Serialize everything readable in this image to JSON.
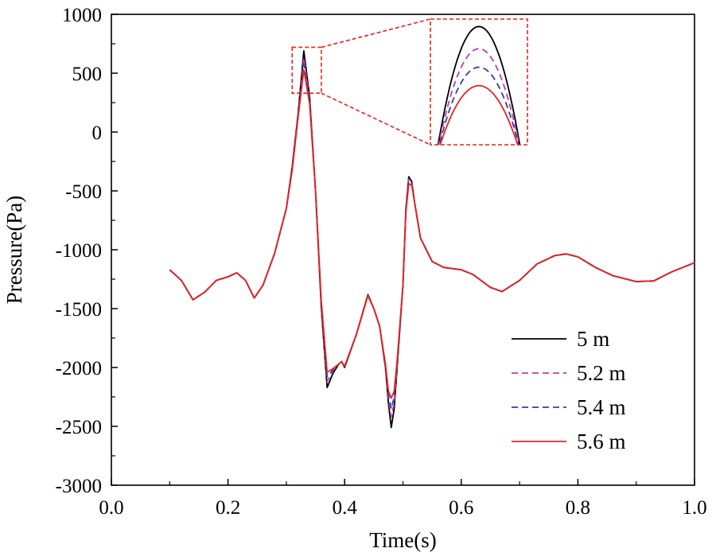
{
  "chart_data": {
    "type": "line",
    "title": "",
    "xlabel": "Time(s)",
    "ylabel": "Pressure(Pa)",
    "xlim": [
      0.0,
      1.0
    ],
    "ylim": [
      -3000,
      1000
    ],
    "x_ticks": [
      0.0,
      0.2,
      0.4,
      0.6,
      0.8,
      1.0
    ],
    "x_tick_labels": [
      "0.0",
      "0.2",
      "0.4",
      "0.6",
      "0.8",
      "1.0"
    ],
    "y_ticks": [
      1000,
      500,
      0,
      -500,
      -1000,
      -1500,
      -2000,
      -2500,
      -3000
    ],
    "y_tick_labels": [
      "1000",
      "500",
      "0",
      "-500",
      "-1000",
      "-1500",
      "-2000",
      "-2500",
      "-3000"
    ],
    "legend_position": "bottom-right",
    "grid": false,
    "inset": {
      "type": "zoom",
      "position": "top-center",
      "source_x_range": [
        0.31,
        0.36
      ],
      "source_y_range": [
        330,
        720
      ],
      "inset_x_range": [
        0.316,
        0.344
      ],
      "inset_y_range": [
        370,
        710
      ]
    },
    "series": [
      {
        "name": "5 m",
        "color": "#000000",
        "dash": "solid",
        "x": [
          0.1,
          0.12,
          0.14,
          0.16,
          0.18,
          0.2,
          0.215,
          0.23,
          0.245,
          0.26,
          0.28,
          0.3,
          0.31,
          0.32,
          0.33,
          0.34,
          0.35,
          0.36,
          0.37,
          0.38,
          0.39,
          0.395,
          0.4,
          0.42,
          0.44,
          0.45,
          0.46,
          0.47,
          0.475,
          0.48,
          0.485,
          0.49,
          0.5,
          0.505,
          0.51,
          0.515,
          0.52,
          0.53,
          0.55,
          0.57,
          0.6,
          0.62,
          0.65,
          0.67,
          0.7,
          0.73,
          0.76,
          0.78,
          0.8,
          0.83,
          0.86,
          0.9,
          0.93,
          0.96,
          1.0
        ],
        "y": [
          -1170,
          -1260,
          -1425,
          -1360,
          -1260,
          -1230,
          -1195,
          -1260,
          -1410,
          -1300,
          -1030,
          -650,
          -300,
          150,
          690,
          300,
          -500,
          -1500,
          -2170,
          -2050,
          -1970,
          -1950,
          -2000,
          -1720,
          -1380,
          -1500,
          -1650,
          -2000,
          -2300,
          -2510,
          -2350,
          -2000,
          -1300,
          -650,
          -380,
          -420,
          -600,
          -900,
          -1100,
          -1150,
          -1170,
          -1210,
          -1320,
          -1355,
          -1260,
          -1120,
          -1050,
          -1035,
          -1060,
          -1150,
          -1220,
          -1270,
          -1265,
          -1190,
          -1110
        ]
      },
      {
        "name": "5.2 m",
        "color": "#c03ca8",
        "dash": "dashed",
        "x": [
          0.1,
          0.12,
          0.14,
          0.16,
          0.18,
          0.2,
          0.215,
          0.23,
          0.245,
          0.26,
          0.28,
          0.3,
          0.31,
          0.32,
          0.33,
          0.34,
          0.35,
          0.36,
          0.37,
          0.38,
          0.39,
          0.395,
          0.4,
          0.42,
          0.44,
          0.45,
          0.46,
          0.47,
          0.475,
          0.48,
          0.485,
          0.49,
          0.5,
          0.505,
          0.51,
          0.515,
          0.52,
          0.53,
          0.55,
          0.57,
          0.6,
          0.62,
          0.65,
          0.67,
          0.7,
          0.73,
          0.76,
          0.78,
          0.8,
          0.83,
          0.86,
          0.9,
          0.93,
          0.96,
          1.0
        ],
        "y": [
          -1170,
          -1260,
          -1425,
          -1360,
          -1260,
          -1230,
          -1195,
          -1260,
          -1410,
          -1300,
          -1030,
          -650,
          -310,
          140,
          630,
          280,
          -500,
          -1480,
          -2120,
          -2030,
          -1970,
          -1950,
          -1990,
          -1720,
          -1385,
          -1500,
          -1650,
          -1990,
          -2260,
          -2420,
          -2300,
          -1980,
          -1300,
          -660,
          -400,
          -430,
          -600,
          -900,
          -1100,
          -1150,
          -1170,
          -1210,
          -1320,
          -1355,
          -1260,
          -1120,
          -1050,
          -1035,
          -1060,
          -1150,
          -1220,
          -1270,
          -1265,
          -1190,
          -1110
        ]
      },
      {
        "name": "5.4 m",
        "color": "#2f3fa6",
        "dash": "dashed",
        "x": [
          0.1,
          0.12,
          0.14,
          0.16,
          0.18,
          0.2,
          0.215,
          0.23,
          0.245,
          0.26,
          0.28,
          0.3,
          0.31,
          0.32,
          0.33,
          0.34,
          0.35,
          0.36,
          0.37,
          0.38,
          0.39,
          0.395,
          0.4,
          0.42,
          0.44,
          0.45,
          0.46,
          0.47,
          0.475,
          0.48,
          0.485,
          0.49,
          0.5,
          0.505,
          0.51,
          0.515,
          0.52,
          0.53,
          0.55,
          0.57,
          0.6,
          0.62,
          0.65,
          0.67,
          0.7,
          0.73,
          0.76,
          0.78,
          0.8,
          0.83,
          0.86,
          0.9,
          0.93,
          0.96,
          1.0
        ],
        "y": [
          -1170,
          -1260,
          -1425,
          -1360,
          -1260,
          -1230,
          -1195,
          -1260,
          -1410,
          -1300,
          -1030,
          -650,
          -320,
          130,
          580,
          260,
          -500,
          -1460,
          -2080,
          -2020,
          -1970,
          -1950,
          -1990,
          -1720,
          -1385,
          -1500,
          -1650,
          -1980,
          -2230,
          -2350,
          -2250,
          -1960,
          -1300,
          -670,
          -420,
          -440,
          -600,
          -900,
          -1100,
          -1150,
          -1170,
          -1210,
          -1320,
          -1355,
          -1260,
          -1120,
          -1050,
          -1035,
          -1060,
          -1150,
          -1220,
          -1270,
          -1265,
          -1190,
          -1110
        ]
      },
      {
        "name": "5.6 m",
        "color": "#e8231f",
        "dash": "solid",
        "x": [
          0.1,
          0.12,
          0.14,
          0.16,
          0.18,
          0.2,
          0.215,
          0.23,
          0.245,
          0.26,
          0.28,
          0.3,
          0.31,
          0.32,
          0.33,
          0.34,
          0.35,
          0.36,
          0.37,
          0.38,
          0.39,
          0.395,
          0.4,
          0.42,
          0.44,
          0.45,
          0.46,
          0.47,
          0.475,
          0.48,
          0.485,
          0.49,
          0.5,
          0.505,
          0.51,
          0.515,
          0.52,
          0.53,
          0.55,
          0.57,
          0.6,
          0.62,
          0.65,
          0.67,
          0.7,
          0.73,
          0.76,
          0.78,
          0.8,
          0.83,
          0.86,
          0.9,
          0.93,
          0.96,
          1.0
        ],
        "y": [
          -1170,
          -1260,
          -1425,
          -1360,
          -1260,
          -1230,
          -1195,
          -1260,
          -1410,
          -1300,
          -1030,
          -650,
          -330,
          120,
          530,
          240,
          -500,
          -1440,
          -2040,
          -2010,
          -1970,
          -1950,
          -1990,
          -1720,
          -1390,
          -1500,
          -1650,
          -1970,
          -2200,
          -2260,
          -2200,
          -1940,
          -1300,
          -680,
          -440,
          -450,
          -600,
          -900,
          -1100,
          -1150,
          -1170,
          -1210,
          -1320,
          -1355,
          -1260,
          -1120,
          -1050,
          -1035,
          -1060,
          -1150,
          -1220,
          -1270,
          -1265,
          -1190,
          -1110
        ]
      }
    ]
  }
}
